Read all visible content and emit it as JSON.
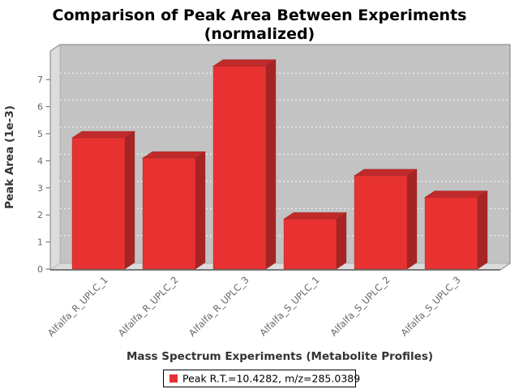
{
  "chart_data": {
    "type": "bar",
    "title": "Comparison of Peak Area Between Experiments",
    "subtitle": "(normalized)",
    "xlabel": "Mass Spectrum Experiments (Metabolite Profiles)",
    "ylabel": "Peak Area (1e-3)",
    "categories": [
      "Alfalfa_R_UPLC_1",
      "Alfalfa_R_UPLC_2",
      "Alfalfa_R_UPLC_3",
      "Alfalfa_S_UPLC_1",
      "Alfalfa_S_UPLC_2",
      "Alfalfa_S_UPLC_3"
    ],
    "series": [
      {
        "name": "Peak R.T.=10.4282, m/z=285.0389",
        "values": [
          4.85,
          4.1,
          7.5,
          1.85,
          3.45,
          2.65
        ]
      }
    ],
    "yticks": [
      0,
      1,
      2,
      3,
      4,
      5,
      6,
      7
    ],
    "ylim": [
      0,
      8
    ],
    "grid": true,
    "grid_style": "white-dashed",
    "legend_position": "bottom",
    "style": "3d-bars",
    "colors": {
      "bar_front": "#e83232",
      "bar_top": "#c12a2a",
      "bar_side": "#a62424",
      "bar_edge": "#8a2424",
      "back_wall": "#c3c3c3",
      "side_wall": "#dcdcdc",
      "gridline": "#ffffff",
      "tick_text": "#666666"
    }
  },
  "legend": {
    "label": "Peak R.T.=10.4282, m/z=285.0389"
  }
}
